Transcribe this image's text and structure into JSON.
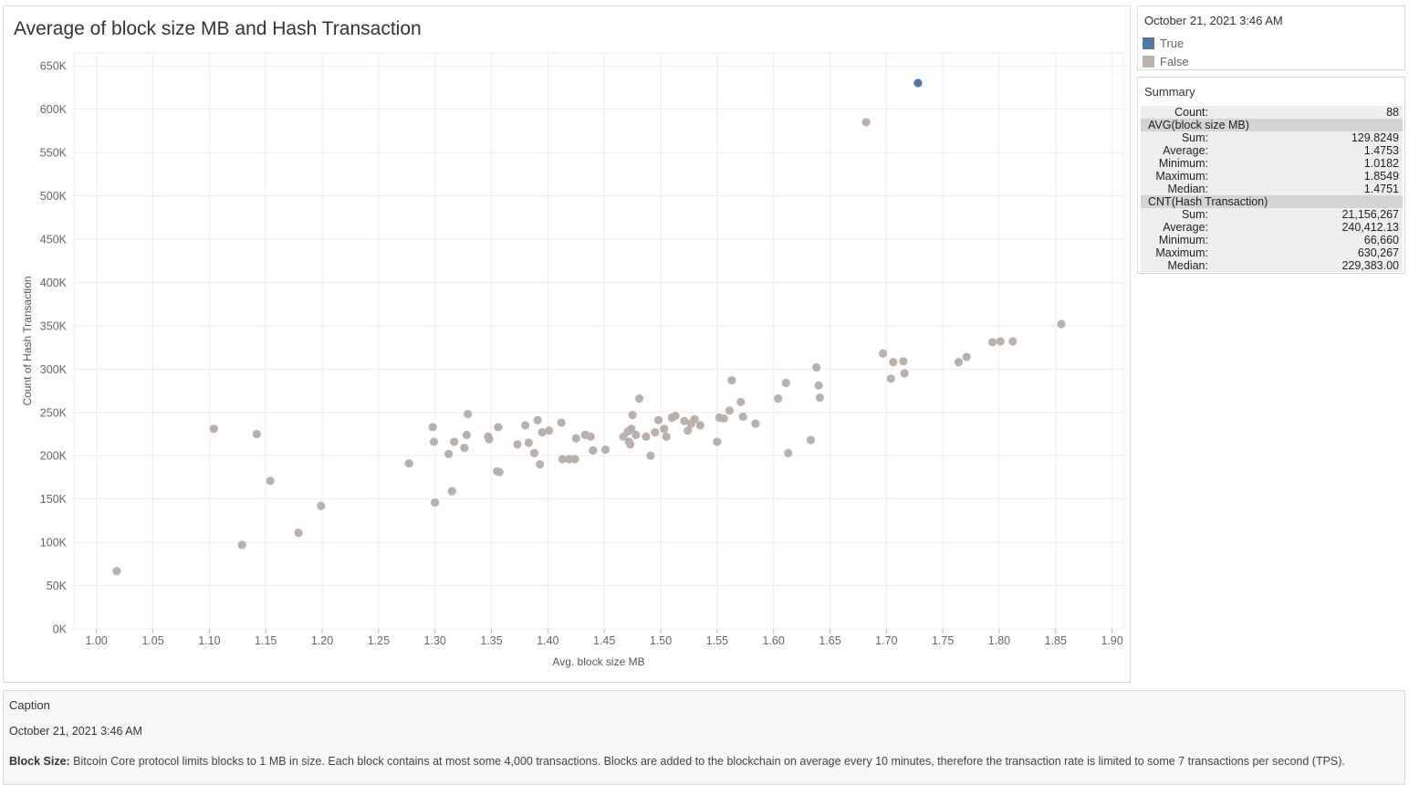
{
  "chart": {
    "title": "Average of block size MB and Hash Transaction"
  },
  "legend": {
    "title": "October 21, 2021 3:46 AM",
    "items": [
      {
        "label": "True",
        "color": "#4e79a7"
      },
      {
        "label": "False",
        "color": "#bab0ac"
      }
    ]
  },
  "summary": {
    "title": "Summary",
    "count_label": "Count:",
    "count_value": "88",
    "sections": [
      {
        "header": "AVG(block size MB)",
        "rows": [
          {
            "label": "Sum:",
            "value": "129.8249"
          },
          {
            "label": "Average:",
            "value": "1.4753"
          },
          {
            "label": "Minimum:",
            "value": "1.0182"
          },
          {
            "label": "Maximum:",
            "value": "1.8549"
          },
          {
            "label": "Median:",
            "value": "1.4751"
          }
        ]
      },
      {
        "header": "CNT(Hash Transaction)",
        "rows": [
          {
            "label": "Sum:",
            "value": "21,156,267"
          },
          {
            "label": "Average:",
            "value": "240,412.13"
          },
          {
            "label": "Minimum:",
            "value": "66,660"
          },
          {
            "label": "Maximum:",
            "value": "630,267"
          },
          {
            "label": "Median:",
            "value": "229,383.00"
          }
        ]
      }
    ]
  },
  "caption": {
    "title": "Caption",
    "date": "October 21, 2021 3:46 AM",
    "label": "Block Size:",
    "text": " Bitcoin Core protocol limits blocks to 1 MB in size. Each block contains at most some 4,000 transactions. Blocks are added to the blockchain on average every 10 minutes, therefore the transaction rate is limited to some 7 transactions per second (TPS)."
  },
  "chart_data": {
    "type": "scatter",
    "title": "Average of block size MB and Hash Transaction",
    "xlabel": "Avg. block size MB",
    "ylabel": "Count of Hash Transaction",
    "xlim": [
      0.98,
      1.91
    ],
    "ylim": [
      0,
      665000
    ],
    "x_ticks": [
      1.0,
      1.05,
      1.1,
      1.15,
      1.2,
      1.25,
      1.3,
      1.35,
      1.4,
      1.45,
      1.5,
      1.55,
      1.6,
      1.65,
      1.7,
      1.75,
      1.8,
      1.85,
      1.9
    ],
    "x_tick_labels": [
      "1.00",
      "1.05",
      "1.10",
      "1.15",
      "1.20",
      "1.25",
      "1.30",
      "1.35",
      "1.40",
      "1.45",
      "1.50",
      "1.55",
      "1.60",
      "1.65",
      "1.70",
      "1.75",
      "1.80",
      "1.85",
      "1.90"
    ],
    "y_ticks": [
      0,
      50000,
      100000,
      150000,
      200000,
      250000,
      300000,
      350000,
      400000,
      450000,
      500000,
      550000,
      600000,
      650000
    ],
    "y_tick_labels": [
      "0K",
      "50K",
      "100K",
      "150K",
      "200K",
      "250K",
      "300K",
      "350K",
      "400K",
      "450K",
      "500K",
      "550K",
      "600K",
      "650K"
    ],
    "grid": true,
    "legend_position": "right",
    "series": [
      {
        "name": "True",
        "color": "#4e79a7",
        "points": [
          [
            1.728,
            630267
          ]
        ]
      },
      {
        "name": "False",
        "color": "#bab0ac",
        "points": [
          [
            1.018,
            66660
          ],
          [
            1.104,
            231000
          ],
          [
            1.129,
            97000
          ],
          [
            1.142,
            225000
          ],
          [
            1.154,
            171000
          ],
          [
            1.179,
            111000
          ],
          [
            1.199,
            142000
          ],
          [
            1.277,
            191000
          ],
          [
            1.298,
            233000
          ],
          [
            1.299,
            216000
          ],
          [
            1.3,
            146000
          ],
          [
            1.312,
            202000
          ],
          [
            1.315,
            159000
          ],
          [
            1.317,
            216000
          ],
          [
            1.326,
            209000
          ],
          [
            1.328,
            224000
          ],
          [
            1.329,
            248000
          ],
          [
            1.347,
            222000
          ],
          [
            1.348,
            219000
          ],
          [
            1.355,
            182000
          ],
          [
            1.356,
            233000
          ],
          [
            1.357,
            181000
          ],
          [
            1.373,
            213000
          ],
          [
            1.38,
            235000
          ],
          [
            1.383,
            215000
          ],
          [
            1.388,
            203000
          ],
          [
            1.391,
            241000
          ],
          [
            1.393,
            190000
          ],
          [
            1.395,
            227000
          ],
          [
            1.401,
            229000
          ],
          [
            1.412,
            238000
          ],
          [
            1.413,
            196000
          ],
          [
            1.419,
            196000
          ],
          [
            1.424,
            196000
          ],
          [
            1.425,
            220000
          ],
          [
            1.433,
            224000
          ],
          [
            1.438,
            222000
          ],
          [
            1.44,
            206000
          ],
          [
            1.451,
            207000
          ],
          [
            1.467,
            222000
          ],
          [
            1.471,
            228000
          ],
          [
            1.472,
            216000
          ],
          [
            1.473,
            213000
          ],
          [
            1.474,
            231000
          ],
          [
            1.475,
            247000
          ],
          [
            1.478,
            224000
          ],
          [
            1.481,
            266000
          ],
          [
            1.487,
            222000
          ],
          [
            1.491,
            200000
          ],
          [
            1.495,
            227000
          ],
          [
            1.498,
            241000
          ],
          [
            1.503,
            231000
          ],
          [
            1.505,
            222000
          ],
          [
            1.51,
            244000
          ],
          [
            1.513,
            246000
          ],
          [
            1.521,
            240000
          ],
          [
            1.524,
            229000
          ],
          [
            1.527,
            237000
          ],
          [
            1.53,
            242000
          ],
          [
            1.535,
            235000
          ],
          [
            1.55,
            216000
          ],
          [
            1.552,
            244000
          ],
          [
            1.556,
            243000
          ],
          [
            1.561,
            252000
          ],
          [
            1.563,
            287000
          ],
          [
            1.571,
            262000
          ],
          [
            1.573,
            245000
          ],
          [
            1.584,
            237000
          ],
          [
            1.604,
            266000
          ],
          [
            1.611,
            284000
          ],
          [
            1.613,
            203000
          ],
          [
            1.633,
            218000
          ],
          [
            1.638,
            302000
          ],
          [
            1.64,
            281000
          ],
          [
            1.641,
            267000
          ],
          [
            1.682,
            585000
          ],
          [
            1.697,
            318000
          ],
          [
            1.704,
            289000
          ],
          [
            1.706,
            308000
          ],
          [
            1.715,
            309000
          ],
          [
            1.716,
            295000
          ],
          [
            1.764,
            308000
          ],
          [
            1.771,
            314000
          ],
          [
            1.794,
            331000
          ],
          [
            1.801,
            332000
          ],
          [
            1.812,
            332000
          ],
          [
            1.855,
            352000
          ]
        ]
      }
    ]
  }
}
